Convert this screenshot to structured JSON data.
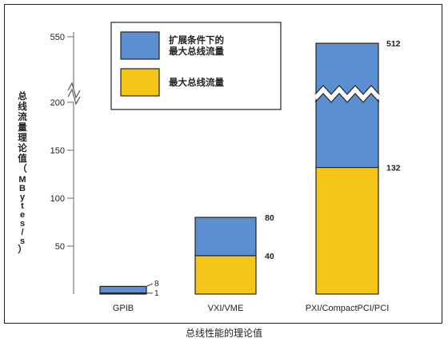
{
  "chart_data": {
    "type": "bar",
    "stacked": true,
    "categories": [
      "GPIB",
      "VXI/VME",
      "PXI/CompactPCI/PCI"
    ],
    "series": [
      {
        "name": "最大总线流量",
        "values": [
          1,
          40,
          132
        ],
        "color": "#f5c518"
      },
      {
        "name": "扩展条件下的最大总线流量",
        "values": [
          8,
          80,
          512
        ],
        "color": "#5b8fd0"
      }
    ],
    "ylabel_lines": [
      "总线流量理论值",
      "（MBytes/s）"
    ],
    "yticks": [
      50,
      100,
      150,
      200,
      550
    ],
    "ylim": [
      0,
      550
    ],
    "axis_break": true,
    "grid": false,
    "legend_position": "top-center",
    "legend_lines": [
      [
        "扩展条件下的",
        "最大总线流量"
      ],
      [
        "最大总线流量"
      ]
    ]
  },
  "caption": "总线性能的理论值"
}
